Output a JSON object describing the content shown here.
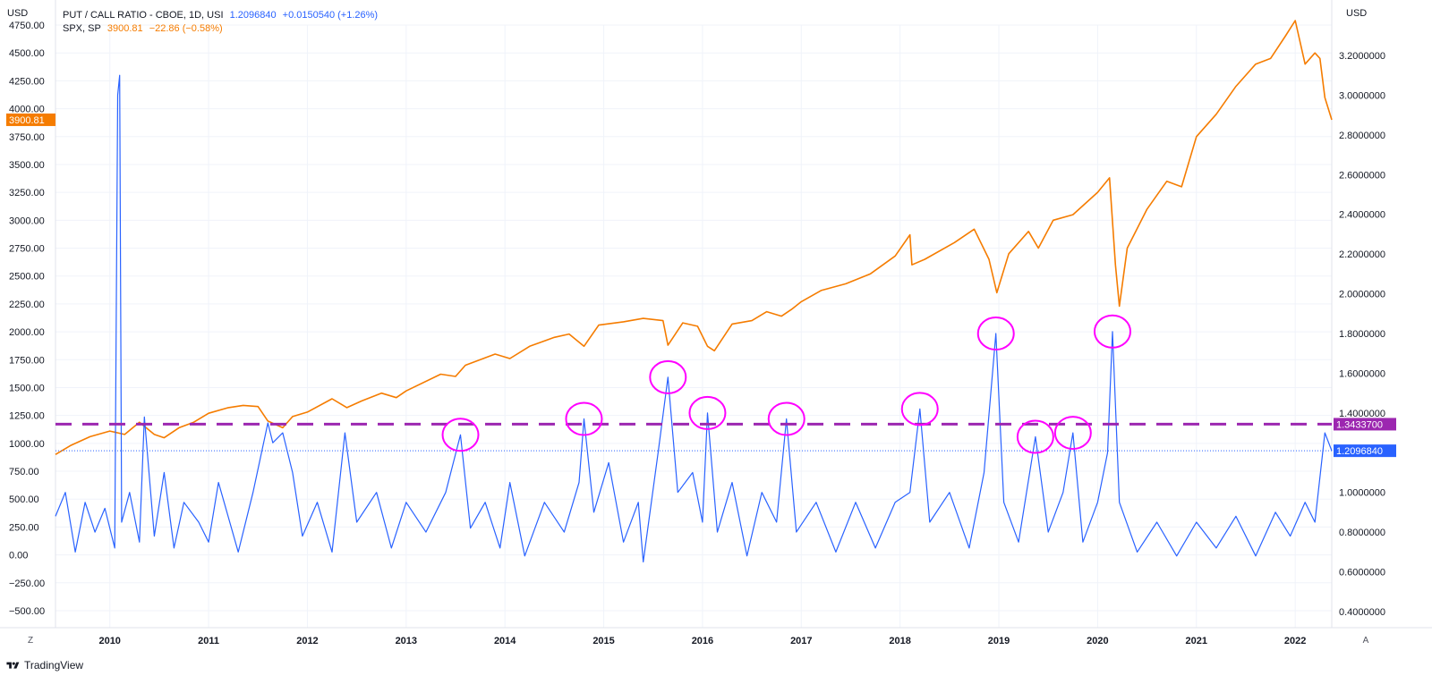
{
  "left_axis": {
    "unit": "USD",
    "ticks": [
      "4750.00",
      "4500.00",
      "4250.00",
      "4000.00",
      "3750.00",
      "3500.00",
      "3250.00",
      "3000.00",
      "2750.00",
      "2500.00",
      "2250.00",
      "2000.00",
      "1750.00",
      "1500.00",
      "1250.00",
      "1000.00",
      "750.00",
      "500.00",
      "250.00",
      "0.00",
      "−250.00",
      "−500.00"
    ],
    "price_tag": "3900.81"
  },
  "right_axis": {
    "unit": "USD",
    "ticks": [
      "3.2000000",
      "3.0000000",
      "2.8000000",
      "2.6000000",
      "2.4000000",
      "2.2000000",
      "2.0000000",
      "1.8000000",
      "1.6000000",
      "1.4000000",
      "1.2000000",
      "1.0000000",
      "0.8000000",
      "0.6000000",
      "0.4000000"
    ],
    "threshold_tag": "1.3433700",
    "last_tag": "1.2096840"
  },
  "legend": {
    "line1": {
      "name": "PUT / CALL RATIO - CBOE, 1D, USI",
      "value": "1.2096840",
      "change": "+0.0150540 (+1.26%)"
    },
    "line2": {
      "name": "SPX, SP",
      "value": "3900.81",
      "change": "−22.86 (−0.58%)"
    }
  },
  "corners": {
    "left": "Z",
    "right": "A"
  },
  "footer": {
    "brand": "TradingView"
  },
  "colors": {
    "put_call": "#2962ff",
    "spx": "#f57c00",
    "threshold": "#9c27b0",
    "circles": "#ff00ff",
    "grid": "#f0f3fa",
    "text": "#131722"
  },
  "chart_data": {
    "type": "line",
    "x_ticks": [
      "2010",
      "2011",
      "2012",
      "2013",
      "2014",
      "2015",
      "2016",
      "2017",
      "2018",
      "2019",
      "2020",
      "2021",
      "2022"
    ],
    "x_range": [
      2009.45,
      2022.37
    ],
    "y_left_range": [
      -500,
      4750
    ],
    "y_right_range": [
      0.4,
      3.2
    ],
    "threshold": 1.34337,
    "last_value": 1.209684,
    "series": [
      {
        "name": "SPX, SP",
        "axis": "left",
        "points": [
          [
            2009.45,
            900
          ],
          [
            2009.6,
            980
          ],
          [
            2009.8,
            1060
          ],
          [
            2010.0,
            1110
          ],
          [
            2010.15,
            1080
          ],
          [
            2010.3,
            1190
          ],
          [
            2010.45,
            1080
          ],
          [
            2010.55,
            1050
          ],
          [
            2010.7,
            1140
          ],
          [
            2010.85,
            1190
          ],
          [
            2011.0,
            1270
          ],
          [
            2011.2,
            1320
          ],
          [
            2011.35,
            1340
          ],
          [
            2011.5,
            1330
          ],
          [
            2011.6,
            1200
          ],
          [
            2011.75,
            1140
          ],
          [
            2011.85,
            1240
          ],
          [
            2012.0,
            1280
          ],
          [
            2012.25,
            1400
          ],
          [
            2012.4,
            1320
          ],
          [
            2012.55,
            1380
          ],
          [
            2012.75,
            1450
          ],
          [
            2012.9,
            1410
          ],
          [
            2013.0,
            1470
          ],
          [
            2013.35,
            1620
          ],
          [
            2013.5,
            1600
          ],
          [
            2013.6,
            1700
          ],
          [
            2013.9,
            1800
          ],
          [
            2014.05,
            1760
          ],
          [
            2014.25,
            1870
          ],
          [
            2014.5,
            1950
          ],
          [
            2014.65,
            1980
          ],
          [
            2014.8,
            1870
          ],
          [
            2014.95,
            2060
          ],
          [
            2015.2,
            2090
          ],
          [
            2015.4,
            2120
          ],
          [
            2015.6,
            2100
          ],
          [
            2015.65,
            1880
          ],
          [
            2015.8,
            2080
          ],
          [
            2015.95,
            2050
          ],
          [
            2016.05,
            1870
          ],
          [
            2016.12,
            1830
          ],
          [
            2016.3,
            2070
          ],
          [
            2016.5,
            2100
          ],
          [
            2016.65,
            2180
          ],
          [
            2016.8,
            2140
          ],
          [
            2016.9,
            2200
          ],
          [
            2017.0,
            2270
          ],
          [
            2017.2,
            2370
          ],
          [
            2017.45,
            2430
          ],
          [
            2017.7,
            2520
          ],
          [
            2017.95,
            2680
          ],
          [
            2018.1,
            2870
          ],
          [
            2018.12,
            2600
          ],
          [
            2018.25,
            2650
          ],
          [
            2018.55,
            2800
          ],
          [
            2018.75,
            2920
          ],
          [
            2018.9,
            2650
          ],
          [
            2018.98,
            2350
          ],
          [
            2019.1,
            2700
          ],
          [
            2019.3,
            2900
          ],
          [
            2019.4,
            2750
          ],
          [
            2019.55,
            3000
          ],
          [
            2019.75,
            3050
          ],
          [
            2020.0,
            3250
          ],
          [
            2020.12,
            3380
          ],
          [
            2020.18,
            2600
          ],
          [
            2020.22,
            2230
          ],
          [
            2020.3,
            2750
          ],
          [
            2020.5,
            3100
          ],
          [
            2020.7,
            3350
          ],
          [
            2020.85,
            3300
          ],
          [
            2021.0,
            3750
          ],
          [
            2021.2,
            3950
          ],
          [
            2021.4,
            4200
          ],
          [
            2021.6,
            4400
          ],
          [
            2021.75,
            4450
          ],
          [
            2021.9,
            4650
          ],
          [
            2022.0,
            4790
          ],
          [
            2022.1,
            4400
          ],
          [
            2022.2,
            4500
          ],
          [
            2022.25,
            4450
          ],
          [
            2022.3,
            4100
          ],
          [
            2022.37,
            3900
          ]
        ]
      },
      {
        "name": "PUT / CALL RATIO - CBOE, 1D, USI",
        "axis": "right",
        "points": [
          [
            2009.45,
            0.88
          ],
          [
            2009.55,
            1.0
          ],
          [
            2009.65,
            0.7
          ],
          [
            2009.75,
            0.95
          ],
          [
            2009.85,
            0.8
          ],
          [
            2009.95,
            0.92
          ],
          [
            2010.05,
            0.72
          ],
          [
            2010.08,
            3.0
          ],
          [
            2010.1,
            3.1
          ],
          [
            2010.12,
            0.85
          ],
          [
            2010.2,
            1.0
          ],
          [
            2010.3,
            0.75
          ],
          [
            2010.35,
            1.38
          ],
          [
            2010.45,
            0.78
          ],
          [
            2010.55,
            1.1
          ],
          [
            2010.65,
            0.72
          ],
          [
            2010.75,
            0.95
          ],
          [
            2010.9,
            0.85
          ],
          [
            2011.0,
            0.75
          ],
          [
            2011.1,
            1.05
          ],
          [
            2011.3,
            0.7
          ],
          [
            2011.45,
            1.0
          ],
          [
            2011.6,
            1.35
          ],
          [
            2011.65,
            1.25
          ],
          [
            2011.75,
            1.3
          ],
          [
            2011.85,
            1.1
          ],
          [
            2011.95,
            0.78
          ],
          [
            2012.1,
            0.95
          ],
          [
            2012.25,
            0.7
          ],
          [
            2012.38,
            1.3
          ],
          [
            2012.5,
            0.85
          ],
          [
            2012.7,
            1.0
          ],
          [
            2012.85,
            0.72
          ],
          [
            2013.0,
            0.95
          ],
          [
            2013.2,
            0.8
          ],
          [
            2013.4,
            1.0
          ],
          [
            2013.55,
            1.29
          ],
          [
            2013.65,
            0.82
          ],
          [
            2013.8,
            0.95
          ],
          [
            2013.95,
            0.72
          ],
          [
            2014.05,
            1.05
          ],
          [
            2014.2,
            0.68
          ],
          [
            2014.4,
            0.95
          ],
          [
            2014.6,
            0.8
          ],
          [
            2014.75,
            1.05
          ],
          [
            2014.8,
            1.37
          ],
          [
            2014.9,
            0.9
          ],
          [
            2015.05,
            1.15
          ],
          [
            2015.2,
            0.75
          ],
          [
            2015.35,
            0.95
          ],
          [
            2015.4,
            0.65
          ],
          [
            2015.55,
            1.2
          ],
          [
            2015.65,
            1.58
          ],
          [
            2015.75,
            1.0
          ],
          [
            2015.9,
            1.1
          ],
          [
            2016.0,
            0.85
          ],
          [
            2016.05,
            1.4
          ],
          [
            2016.15,
            0.8
          ],
          [
            2016.3,
            1.05
          ],
          [
            2016.45,
            0.68
          ],
          [
            2016.6,
            1.0
          ],
          [
            2016.75,
            0.85
          ],
          [
            2016.85,
            1.37
          ],
          [
            2016.95,
            0.8
          ],
          [
            2017.15,
            0.95
          ],
          [
            2017.35,
            0.7
          ],
          [
            2017.55,
            0.95
          ],
          [
            2017.75,
            0.72
          ],
          [
            2017.95,
            0.95
          ],
          [
            2018.1,
            1.0
          ],
          [
            2018.2,
            1.42
          ],
          [
            2018.3,
            0.85
          ],
          [
            2018.5,
            1.0
          ],
          [
            2018.7,
            0.72
          ],
          [
            2018.85,
            1.1
          ],
          [
            2018.97,
            1.8
          ],
          [
            2019.05,
            0.95
          ],
          [
            2019.2,
            0.75
          ],
          [
            2019.37,
            1.28
          ],
          [
            2019.5,
            0.8
          ],
          [
            2019.65,
            1.0
          ],
          [
            2019.75,
            1.3
          ],
          [
            2019.85,
            0.75
          ],
          [
            2020.0,
            0.95
          ],
          [
            2020.1,
            1.2
          ],
          [
            2020.15,
            1.81
          ],
          [
            2020.22,
            0.95
          ],
          [
            2020.4,
            0.7
          ],
          [
            2020.6,
            0.85
          ],
          [
            2020.8,
            0.68
          ],
          [
            2021.0,
            0.85
          ],
          [
            2021.2,
            0.72
          ],
          [
            2021.4,
            0.88
          ],
          [
            2021.6,
            0.68
          ],
          [
            2021.8,
            0.9
          ],
          [
            2021.95,
            0.78
          ],
          [
            2022.1,
            0.95
          ],
          [
            2022.2,
            0.85
          ],
          [
            2022.3,
            1.3
          ],
          [
            2022.37,
            1.21
          ]
        ]
      }
    ],
    "highlighted_spikes": [
      [
        2013.55,
        1.29
      ],
      [
        2014.8,
        1.37
      ],
      [
        2015.65,
        1.58
      ],
      [
        2016.05,
        1.4
      ],
      [
        2016.85,
        1.37
      ],
      [
        2018.2,
        1.42
      ],
      [
        2018.97,
        1.8
      ],
      [
        2019.37,
        1.28
      ],
      [
        2019.75,
        1.3
      ],
      [
        2020.15,
        1.81
      ]
    ]
  }
}
